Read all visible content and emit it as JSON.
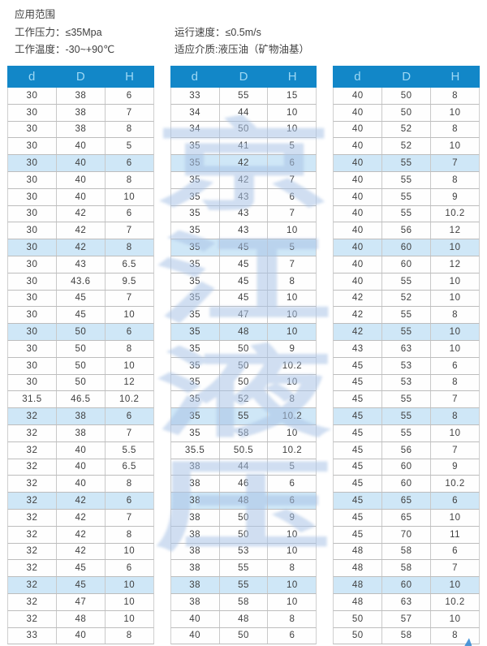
{
  "info": {
    "title": "应用范围",
    "lines": [
      {
        "left": "工作压力：≤35Mpa",
        "right": "运行速度：≤0.5m/s"
      },
      {
        "left": "工作温度：-30~+90℃",
        "right": "适应介质:液压油（矿物油基）"
      }
    ]
  },
  "colors": {
    "header_bg": "#1287c8",
    "header_text": "#9dd8f4",
    "row_highlight": "#cfe7f7",
    "row_border": "#bdbdbd",
    "watermark": "#a9c3e6",
    "arrow": "#2f86d2"
  },
  "watermark": {
    "characters": [
      "京",
      "江",
      "液",
      "压"
    ]
  },
  "tables": [
    {
      "columns": [
        "d",
        "D",
        "H"
      ],
      "highlighted_rows": [
        5,
        10,
        15,
        20,
        25,
        30
      ],
      "rows": [
        [
          "30",
          "38",
          "6"
        ],
        [
          "30",
          "38",
          "7"
        ],
        [
          "30",
          "38",
          "8"
        ],
        [
          "30",
          "40",
          "5"
        ],
        [
          "30",
          "40",
          "6"
        ],
        [
          "30",
          "40",
          "8"
        ],
        [
          "30",
          "40",
          "10"
        ],
        [
          "30",
          "42",
          "6"
        ],
        [
          "30",
          "42",
          "7"
        ],
        [
          "30",
          "42",
          "8"
        ],
        [
          "30",
          "43",
          "6.5"
        ],
        [
          "30",
          "43.6",
          "9.5"
        ],
        [
          "30",
          "45",
          "7"
        ],
        [
          "30",
          "45",
          "10"
        ],
        [
          "30",
          "50",
          "6"
        ],
        [
          "30",
          "50",
          "8"
        ],
        [
          "30",
          "50",
          "10"
        ],
        [
          "30",
          "50",
          "12"
        ],
        [
          "31.5",
          "46.5",
          "10.2"
        ],
        [
          "32",
          "38",
          "6"
        ],
        [
          "32",
          "38",
          "7"
        ],
        [
          "32",
          "40",
          "5.5"
        ],
        [
          "32",
          "40",
          "6.5"
        ],
        [
          "32",
          "40",
          "8"
        ],
        [
          "32",
          "42",
          "6"
        ],
        [
          "32",
          "42",
          "7"
        ],
        [
          "32",
          "42",
          "8"
        ],
        [
          "32",
          "42",
          "10"
        ],
        [
          "32",
          "45",
          "6"
        ],
        [
          "32",
          "45",
          "10"
        ],
        [
          "32",
          "47",
          "10"
        ],
        [
          "32",
          "48",
          "10"
        ],
        [
          "33",
          "40",
          "8"
        ]
      ]
    },
    {
      "columns": [
        "d",
        "D",
        "H"
      ],
      "highlighted_rows": [
        5,
        10,
        15,
        20,
        25,
        30
      ],
      "rows": [
        [
          "33",
          "55",
          "15"
        ],
        [
          "34",
          "44",
          "10"
        ],
        [
          "34",
          "50",
          "10"
        ],
        [
          "35",
          "41",
          "5"
        ],
        [
          "35",
          "42",
          "6"
        ],
        [
          "35",
          "42",
          "7"
        ],
        [
          "35",
          "43",
          "6"
        ],
        [
          "35",
          "43",
          "7"
        ],
        [
          "35",
          "43",
          "10"
        ],
        [
          "35",
          "45",
          "5"
        ],
        [
          "35",
          "45",
          "7"
        ],
        [
          "35",
          "45",
          "8"
        ],
        [
          "35",
          "45",
          "10"
        ],
        [
          "35",
          "47",
          "10"
        ],
        [
          "35",
          "48",
          "10"
        ],
        [
          "35",
          "50",
          "9"
        ],
        [
          "35",
          "50",
          "10.2"
        ],
        [
          "35",
          "50",
          "10"
        ],
        [
          "35",
          "52",
          "8"
        ],
        [
          "35",
          "55",
          "10.2"
        ],
        [
          "35",
          "58",
          "10"
        ],
        [
          "35.5",
          "50.5",
          "10.2"
        ],
        [
          "38",
          "44",
          "5"
        ],
        [
          "38",
          "46",
          "6"
        ],
        [
          "38",
          "48",
          "6"
        ],
        [
          "38",
          "50",
          "9"
        ],
        [
          "38",
          "50",
          "10"
        ],
        [
          "38",
          "53",
          "10"
        ],
        [
          "38",
          "55",
          "8"
        ],
        [
          "38",
          "55",
          "10"
        ],
        [
          "38",
          "58",
          "10"
        ],
        [
          "40",
          "48",
          "8"
        ],
        [
          "40",
          "50",
          "6"
        ]
      ]
    },
    {
      "columns": [
        "d",
        "D",
        "H"
      ],
      "highlighted_rows": [
        5,
        10,
        15,
        20,
        25,
        30
      ],
      "rows": [
        [
          "40",
          "50",
          "8"
        ],
        [
          "40",
          "50",
          "10"
        ],
        [
          "40",
          "52",
          "8"
        ],
        [
          "40",
          "52",
          "10"
        ],
        [
          "40",
          "55",
          "7"
        ],
        [
          "40",
          "55",
          "8"
        ],
        [
          "40",
          "55",
          "9"
        ],
        [
          "40",
          "55",
          "10.2"
        ],
        [
          "40",
          "56",
          "12"
        ],
        [
          "40",
          "60",
          "10"
        ],
        [
          "40",
          "60",
          "12"
        ],
        [
          "40",
          "55",
          "10"
        ],
        [
          "42",
          "52",
          "10"
        ],
        [
          "42",
          "55",
          "8"
        ],
        [
          "42",
          "55",
          "10"
        ],
        [
          "43",
          "63",
          "10"
        ],
        [
          "45",
          "53",
          "6"
        ],
        [
          "45",
          "53",
          "8"
        ],
        [
          "45",
          "55",
          "7"
        ],
        [
          "45",
          "55",
          "8"
        ],
        [
          "45",
          "55",
          "10"
        ],
        [
          "45",
          "56",
          "7"
        ],
        [
          "45",
          "60",
          "9"
        ],
        [
          "45",
          "60",
          "10.2"
        ],
        [
          "45",
          "65",
          "6"
        ],
        [
          "45",
          "65",
          "10"
        ],
        [
          "45",
          "70",
          "11"
        ],
        [
          "48",
          "58",
          "6"
        ],
        [
          "48",
          "58",
          "7"
        ],
        [
          "48",
          "60",
          "10"
        ],
        [
          "48",
          "63",
          "10.2"
        ],
        [
          "50",
          "57",
          "10"
        ],
        [
          "50",
          "58",
          "8"
        ]
      ]
    }
  ]
}
